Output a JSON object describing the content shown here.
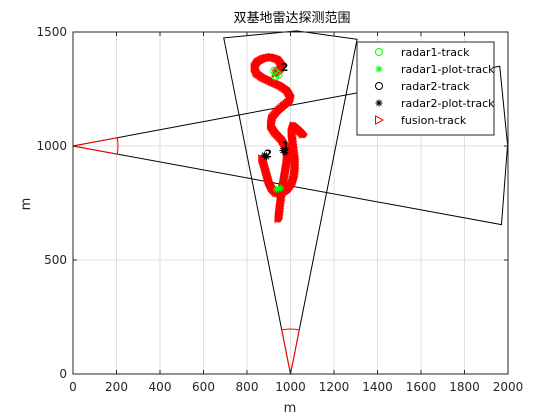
{
  "chart_data": {
    "type": "scatter",
    "title": "双基地雷达探测范围",
    "xlabel": "m",
    "ylabel": "m",
    "xlim": [
      0,
      2000
    ],
    "ylim": [
      0,
      1500
    ],
    "x_ticks": [
      0,
      200,
      400,
      600,
      800,
      1000,
      1200,
      1400,
      1600,
      1800,
      2000
    ],
    "y_ticks": [
      0,
      500,
      1000,
      1500
    ],
    "grid": true,
    "legend_position": "top-right",
    "legend": [
      {
        "label": "radar1-track",
        "marker": "circle",
        "color": "#00ff00"
      },
      {
        "label": "radar1-plot-track",
        "marker": "asterisk",
        "color": "#00ff00"
      },
      {
        "label": "radar2-track",
        "marker": "circle",
        "color": "#000000"
      },
      {
        "label": "radar2-plot-track",
        "marker": "asterisk",
        "color": "#000000"
      },
      {
        "label": "fusion-track",
        "marker": "triangle-right",
        "color": "#ff0000"
      }
    ],
    "radar1": {
      "origin": [
        1000,
        0
      ],
      "color": "#000000",
      "arc_color": "#ff0000",
      "sector_boundary": [
        [
          1000,
          0
        ],
        [
          693,
          1474
        ],
        [
          1028,
          1505
        ],
        [
          1306,
          1468
        ],
        [
          1000,
          0
        ]
      ]
    },
    "radar2": {
      "origin": [
        0,
        1000
      ],
      "color": "#000000",
      "arc_color": "#ff0000",
      "sector_boundary": [
        [
          0,
          1000
        ],
        [
          1962,
          1350
        ],
        [
          1998,
          1005
        ],
        [
          1970,
          655
        ],
        [
          0,
          1000
        ]
      ]
    },
    "track_labels": [
      {
        "text": "2",
        "x": 955,
        "y": 1330
      },
      {
        "text": "1",
        "x": 960,
        "y": 985
      },
      {
        "text": "2",
        "x": 880,
        "y": 950
      }
    ],
    "fusion_track": [
      [
        945,
        680
      ],
      [
        950,
        720
      ],
      [
        955,
        760
      ],
      [
        960,
        800
      ],
      [
        968,
        840
      ],
      [
        975,
        880
      ],
      [
        982,
        920
      ],
      [
        985,
        960
      ],
      [
        978,
        1000
      ],
      [
        960,
        1030
      ],
      [
        930,
        1060
      ],
      [
        910,
        1090
      ],
      [
        915,
        1120
      ],
      [
        940,
        1150
      ],
      [
        970,
        1175
      ],
      [
        995,
        1195
      ],
      [
        1000,
        1220
      ],
      [
        985,
        1245
      ],
      [
        955,
        1265
      ],
      [
        915,
        1282
      ],
      [
        875,
        1300
      ],
      [
        845,
        1320
      ],
      [
        835,
        1345
      ],
      [
        850,
        1368
      ],
      [
        880,
        1383
      ],
      [
        915,
        1390
      ],
      [
        945,
        1380
      ],
      [
        960,
        1360
      ],
      [
        955,
        1335
      ],
      [
        935,
        1318
      ]
    ],
    "fusion_track_2": [
      [
        1060,
        1050
      ],
      [
        1040,
        1070
      ],
      [
        1015,
        1090
      ],
      [
        1005,
        1060
      ],
      [
        1010,
        1020
      ],
      [
        1015,
        980
      ],
      [
        1020,
        940
      ],
      [
        1020,
        900
      ],
      [
        1015,
        860
      ],
      [
        1005,
        830
      ],
      [
        985,
        805
      ],
      [
        960,
        790
      ],
      [
        935,
        795
      ],
      [
        915,
        815
      ],
      [
        900,
        845
      ],
      [
        890,
        880
      ],
      [
        880,
        915
      ],
      [
        870,
        945
      ]
    ],
    "radar1_track": [
      [
        925,
        1330
      ],
      [
        935,
        1320
      ],
      [
        945,
        1312
      ],
      [
        930,
        1305
      ]
    ],
    "radar1_plot_track": [
      [
        935,
        810
      ],
      [
        945,
        812
      ],
      [
        955,
        815
      ]
    ],
    "radar2_plot_track": [
      [
        965,
        980
      ],
      [
        975,
        972
      ],
      [
        880,
        960
      ],
      [
        890,
        952
      ]
    ]
  }
}
